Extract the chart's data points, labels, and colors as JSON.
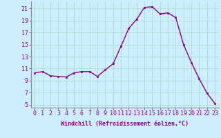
{
  "x": [
    0,
    1,
    2,
    3,
    4,
    5,
    6,
    7,
    8,
    9,
    10,
    11,
    12,
    13,
    14,
    15,
    16,
    17,
    18,
    19,
    20,
    21,
    22,
    23
  ],
  "y": [
    10.3,
    10.5,
    9.8,
    9.7,
    9.6,
    10.3,
    10.5,
    10.5,
    9.7,
    10.8,
    11.8,
    14.7,
    17.7,
    19.2,
    21.2,
    21.3,
    20.1,
    20.3,
    19.5,
    15.0,
    12.0,
    9.3,
    6.9,
    5.2
  ],
  "line_color": "#8B008B",
  "marker": "s",
  "marker_size": 1.5,
  "linewidth": 1.0,
  "bg_color": "#cceeff",
  "grid_color": "#aaddcc",
  "xlabel": "Windchill (Refroidissement éolien,°C)",
  "xlabel_fontsize": 6,
  "tick_fontsize": 6,
  "yticks": [
    5,
    7,
    9,
    11,
    13,
    15,
    17,
    19,
    21
  ],
  "xlim": [
    -0.5,
    23.5
  ],
  "ylim": [
    4.5,
    22.2
  ],
  "xticks": [
    0,
    1,
    2,
    3,
    4,
    5,
    6,
    7,
    8,
    9,
    10,
    11,
    12,
    13,
    14,
    15,
    16,
    17,
    18,
    19,
    20,
    21,
    22,
    23
  ]
}
